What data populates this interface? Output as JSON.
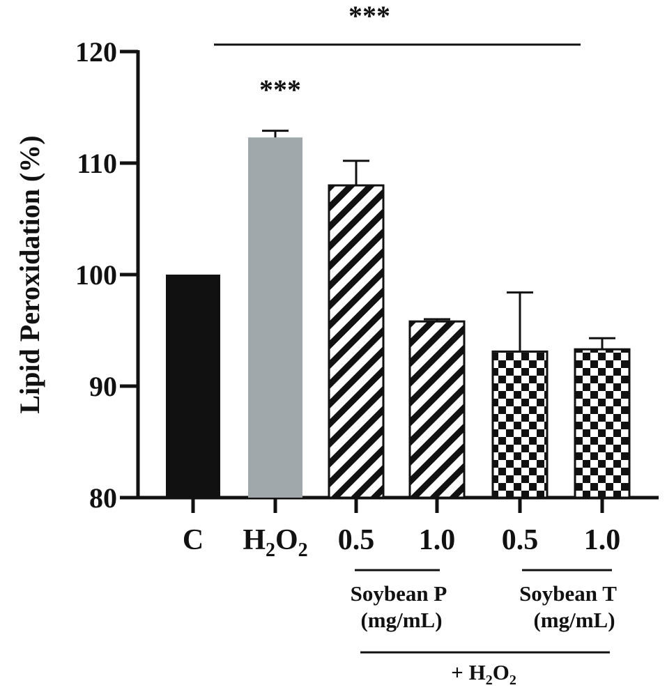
{
  "chart_data": {
    "type": "bar",
    "ylabel": "Lipid Peroxidation (%)",
    "ylim": [
      80,
      120
    ],
    "yticks": [
      80,
      90,
      100,
      110,
      120
    ],
    "categories": [
      {
        "label": "C",
        "sub": "",
        "value": 100.0,
        "error": 0,
        "fill": "#111111",
        "pattern": "solid"
      },
      {
        "label": "H",
        "sub": "2",
        "label2": "O",
        "sub2": "2",
        "value": 112.3,
        "error": 0.6,
        "fill": "#a0a8ab",
        "pattern": "solid"
      },
      {
        "label": "0.5",
        "sub": "",
        "value": 108.0,
        "error": 2.2,
        "fill": "#ffffff",
        "pattern": "stripes"
      },
      {
        "label": "1.0",
        "sub": "",
        "value": 95.8,
        "error": 0.2,
        "fill": "#ffffff",
        "pattern": "stripes"
      },
      {
        "label": "0.5",
        "sub": "",
        "value": 93.1,
        "error": 5.3,
        "fill": "#ffffff",
        "pattern": "checker"
      },
      {
        "label": "1.0",
        "sub": "",
        "value": 93.3,
        "error": 1.0,
        "fill": "#ffffff",
        "pattern": "checker"
      }
    ],
    "significance": {
      "bar_marker": "***",
      "bracket_marker": "***"
    },
    "groups": [
      {
        "line1": "Soybean P",
        "line2": "(mg/mL)"
      },
      {
        "line1": "Soybean T",
        "line2": "(mg/mL)"
      }
    ],
    "treatment_label": {
      "prefix": "+ H",
      "sub": "2",
      "mid": "O",
      "sub2": "2"
    },
    "grid": false,
    "legend": "none"
  }
}
